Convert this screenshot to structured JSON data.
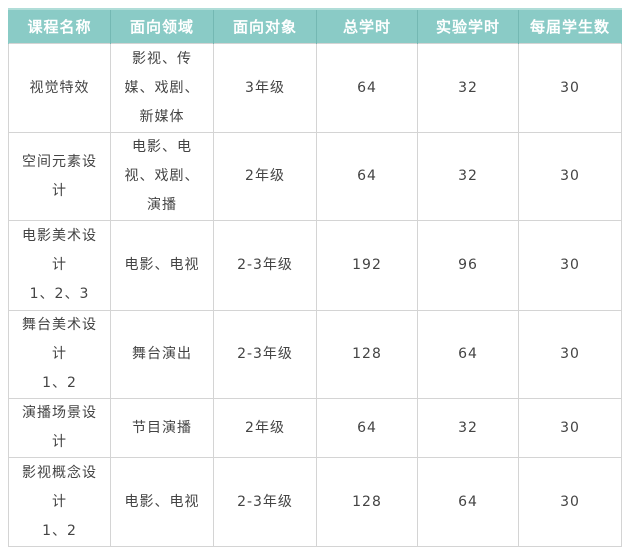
{
  "colors": {
    "header_bg": "#8acbc6",
    "header_text": "#ffffff",
    "header_separator": "#74b8b3",
    "header_top": "#b0ddd8",
    "body_border": "#d4d4d4",
    "body_text": "#444444"
  },
  "table": {
    "columns": [
      {
        "key": "course",
        "label": "课程名称"
      },
      {
        "key": "field",
        "label": "面向领域"
      },
      {
        "key": "audience",
        "label": "面向对象"
      },
      {
        "key": "total_hours",
        "label": "总学时"
      },
      {
        "key": "lab_hours",
        "label": "实验学时"
      },
      {
        "key": "students",
        "label": "每届学生数"
      }
    ],
    "rows": [
      {
        "course": "视觉特效",
        "field": "影视、传\n媒、戏剧、\n新媒体",
        "audience": "3年级",
        "total_hours": "64",
        "lab_hours": "32",
        "students": "30"
      },
      {
        "course": "空间元素设\n计",
        "field": "电影、电\n视、戏剧、\n演播",
        "audience": "2年级",
        "total_hours": "64",
        "lab_hours": "32",
        "students": "30"
      },
      {
        "course": "电影美术设\n计\n1、2、3",
        "field": "电影、电视",
        "audience": "2-3年级",
        "total_hours": "192",
        "lab_hours": "96",
        "students": "30"
      },
      {
        "course": "舞台美术设\n计\n1、2",
        "field": "舞台演出",
        "audience": "2-3年级",
        "total_hours": "128",
        "lab_hours": "64",
        "students": "30"
      },
      {
        "course": "演播场景设\n计",
        "field": "节目演播",
        "audience": "2年级",
        "total_hours": "64",
        "lab_hours": "32",
        "students": "30"
      },
      {
        "course": "影视概念设\n计\n1、2",
        "field": "电影、电视",
        "audience": "2-3年级",
        "total_hours": "128",
        "lab_hours": "64",
        "students": "30"
      }
    ]
  }
}
